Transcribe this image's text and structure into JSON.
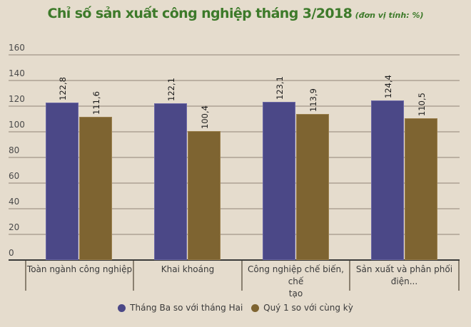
{
  "title": {
    "main": "Chỉ số sản xuất công nghiệp tháng 3/2018",
    "unit": "(đơn vị tính: %)"
  },
  "colors": {
    "background": "#e5dccd",
    "title": "#3d7a2a",
    "series_1": "#4b4887",
    "series_2": "#7e6431"
  },
  "chart_data": {
    "type": "bar",
    "title": "Chỉ số sản xuất công nghiệp tháng 3/2018 (đơn vị tính: %)",
    "xlabel": "",
    "ylabel": "",
    "ylim": [
      0,
      160
    ],
    "yticks": [
      "0",
      "20",
      "40",
      "60",
      "80",
      "100",
      "120",
      "140",
      "160"
    ],
    "grid": true,
    "legend_position": "bottom",
    "categories": [
      "Toàn ngành công nghiệp",
      "Khai khoáng",
      "Công nghiệp chế biến, chế tạo",
      "Sản xuất và phân phối điện..."
    ],
    "series": [
      {
        "name": "Tháng Ba so với tháng Hai",
        "values": [
          122.8,
          122.1,
          123.1,
          124.4
        ],
        "labels": [
          "122,8",
          "122,1",
          "123,1",
          "124,4"
        ]
      },
      {
        "name": "Quý 1 so với cùng kỳ",
        "values": [
          111.6,
          100.4,
          113.9,
          110.5
        ],
        "labels": [
          "111,6",
          "100,4",
          "113,9",
          "110,5"
        ]
      }
    ]
  },
  "legend": {
    "items": [
      {
        "label": "Tháng Ba so với tháng Hai"
      },
      {
        "label": "Quý 1 so với cùng kỳ"
      }
    ]
  },
  "axis": {
    "category_lines": [
      "Toàn ngành công nghiệp",
      "Khai khoáng",
      "Công nghiệp chế biến, chế",
      "tạo",
      "Sản xuất và phân phối",
      "điện..."
    ]
  }
}
